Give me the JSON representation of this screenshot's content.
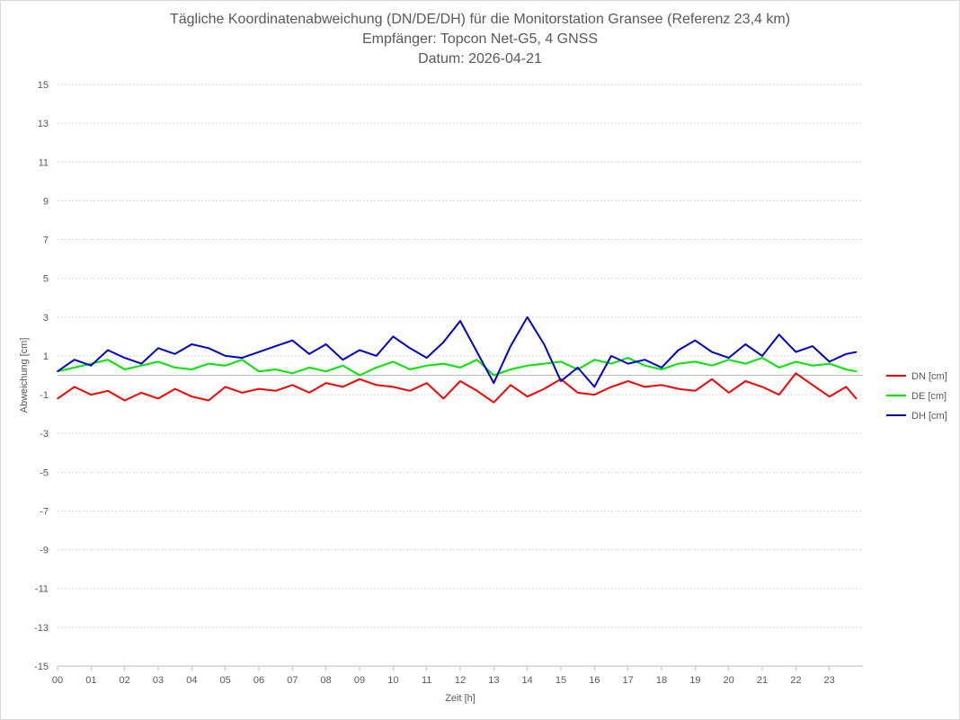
{
  "chart_data": {
    "type": "line",
    "title": "Tägliche Koordinatenabweichung (DN/DE/DH) für die Monitorstation Gransee (Referenz 23,4 km)",
    "subtitle": "Empfänger: Topcon Net-G5, 4 GNSS",
    "date_line": "Datum: 2026-04-21",
    "xlabel": "Zeit [h]",
    "ylabel": "Abweichung [cm]",
    "ylim": [
      -15,
      15
    ],
    "xlim": [
      0,
      24
    ],
    "x_ticks": [
      "00",
      "01",
      "02",
      "03",
      "04",
      "05",
      "06",
      "07",
      "08",
      "09",
      "10",
      "11",
      "12",
      "13",
      "14",
      "15",
      "16",
      "17",
      "18",
      "19",
      "20",
      "21",
      "22",
      "23"
    ],
    "y_ticks": [
      15,
      13,
      11,
      9,
      7,
      5,
      3,
      1,
      -1,
      -3,
      -5,
      -7,
      -9,
      -11,
      -13,
      -15
    ],
    "grid": true,
    "legend_position": "right",
    "series": [
      {
        "name": "DN [cm]",
        "color": "#ff0000",
        "x": [
          0.0,
          0.5,
          1.0,
          1.5,
          2.0,
          2.5,
          3.0,
          3.5,
          4.0,
          4.5,
          5.0,
          5.5,
          6.0,
          6.5,
          7.0,
          7.5,
          8.0,
          8.5,
          9.0,
          9.5,
          10.0,
          10.5,
          11.0,
          11.5,
          12.0,
          12.5,
          13.0,
          13.5,
          14.0,
          14.5,
          15.0,
          15.5,
          16.0,
          16.5,
          17.0,
          17.5,
          18.0,
          18.5,
          19.0,
          19.5,
          20.0,
          20.5,
          21.0,
          21.5,
          22.0,
          22.5,
          23.0,
          23.5,
          23.8
        ],
        "y": [
          -1.2,
          -0.6,
          -1.0,
          -0.8,
          -1.3,
          -0.9,
          -1.2,
          -0.7,
          -1.1,
          -1.3,
          -0.6,
          -0.9,
          -0.7,
          -0.8,
          -0.5,
          -0.9,
          -0.4,
          -0.6,
          -0.2,
          -0.5,
          -0.6,
          -0.8,
          -0.4,
          -1.2,
          -0.3,
          -0.8,
          -1.4,
          -0.5,
          -1.1,
          -0.7,
          -0.2,
          -0.9,
          -1.0,
          -0.6,
          -0.3,
          -0.6,
          -0.5,
          -0.7,
          -0.8,
          -0.2,
          -0.9,
          -0.3,
          -0.6,
          -1.0,
          0.1,
          -0.5,
          -1.1,
          -0.6,
          -1.2
        ]
      },
      {
        "name": "DE [cm]",
        "color": "#00e600",
        "x": [
          0.0,
          0.5,
          1.0,
          1.5,
          2.0,
          2.5,
          3.0,
          3.5,
          4.0,
          4.5,
          5.0,
          5.5,
          6.0,
          6.5,
          7.0,
          7.5,
          8.0,
          8.5,
          9.0,
          9.5,
          10.0,
          10.5,
          11.0,
          11.5,
          12.0,
          12.5,
          13.0,
          13.5,
          14.0,
          14.5,
          15.0,
          15.5,
          16.0,
          16.5,
          17.0,
          17.5,
          18.0,
          18.5,
          19.0,
          19.5,
          20.0,
          20.5,
          21.0,
          21.5,
          22.0,
          22.5,
          23.0,
          23.5,
          23.8
        ],
        "y": [
          0.2,
          0.4,
          0.6,
          0.8,
          0.3,
          0.5,
          0.7,
          0.4,
          0.3,
          0.6,
          0.5,
          0.8,
          0.2,
          0.3,
          0.1,
          0.4,
          0.2,
          0.5,
          0.0,
          0.4,
          0.7,
          0.3,
          0.5,
          0.6,
          0.4,
          0.8,
          0.0,
          0.3,
          0.5,
          0.6,
          0.7,
          0.3,
          0.8,
          0.6,
          0.9,
          0.5,
          0.3,
          0.6,
          0.7,
          0.5,
          0.8,
          0.6,
          0.9,
          0.4,
          0.7,
          0.5,
          0.6,
          0.3,
          0.2
        ]
      },
      {
        "name": "DH [cm]",
        "color": "#0000cc",
        "x": [
          0.0,
          0.5,
          1.0,
          1.5,
          2.0,
          2.5,
          3.0,
          3.5,
          4.0,
          4.5,
          5.0,
          5.5,
          6.0,
          6.5,
          7.0,
          7.5,
          8.0,
          8.5,
          9.0,
          9.5,
          10.0,
          10.5,
          11.0,
          11.5,
          12.0,
          12.5,
          13.0,
          13.5,
          14.0,
          14.5,
          15.0,
          15.5,
          16.0,
          16.5,
          17.0,
          17.5,
          18.0,
          18.5,
          19.0,
          19.5,
          20.0,
          20.5,
          21.0,
          21.5,
          22.0,
          22.5,
          23.0,
          23.5,
          23.8
        ],
        "y": [
          0.2,
          0.8,
          0.5,
          1.3,
          0.9,
          0.6,
          1.4,
          1.1,
          1.6,
          1.4,
          1.0,
          0.9,
          1.2,
          1.5,
          1.8,
          1.1,
          1.6,
          0.8,
          1.3,
          1.0,
          2.0,
          1.4,
          0.9,
          1.7,
          2.8,
          1.2,
          -0.4,
          1.5,
          3.0,
          1.6,
          -0.3,
          0.4,
          -0.6,
          1.0,
          0.6,
          0.8,
          0.4,
          1.3,
          1.8,
          1.2,
          0.9,
          1.6,
          1.0,
          2.1,
          1.2,
          1.5,
          0.7,
          1.1,
          1.2
        ]
      }
    ]
  }
}
